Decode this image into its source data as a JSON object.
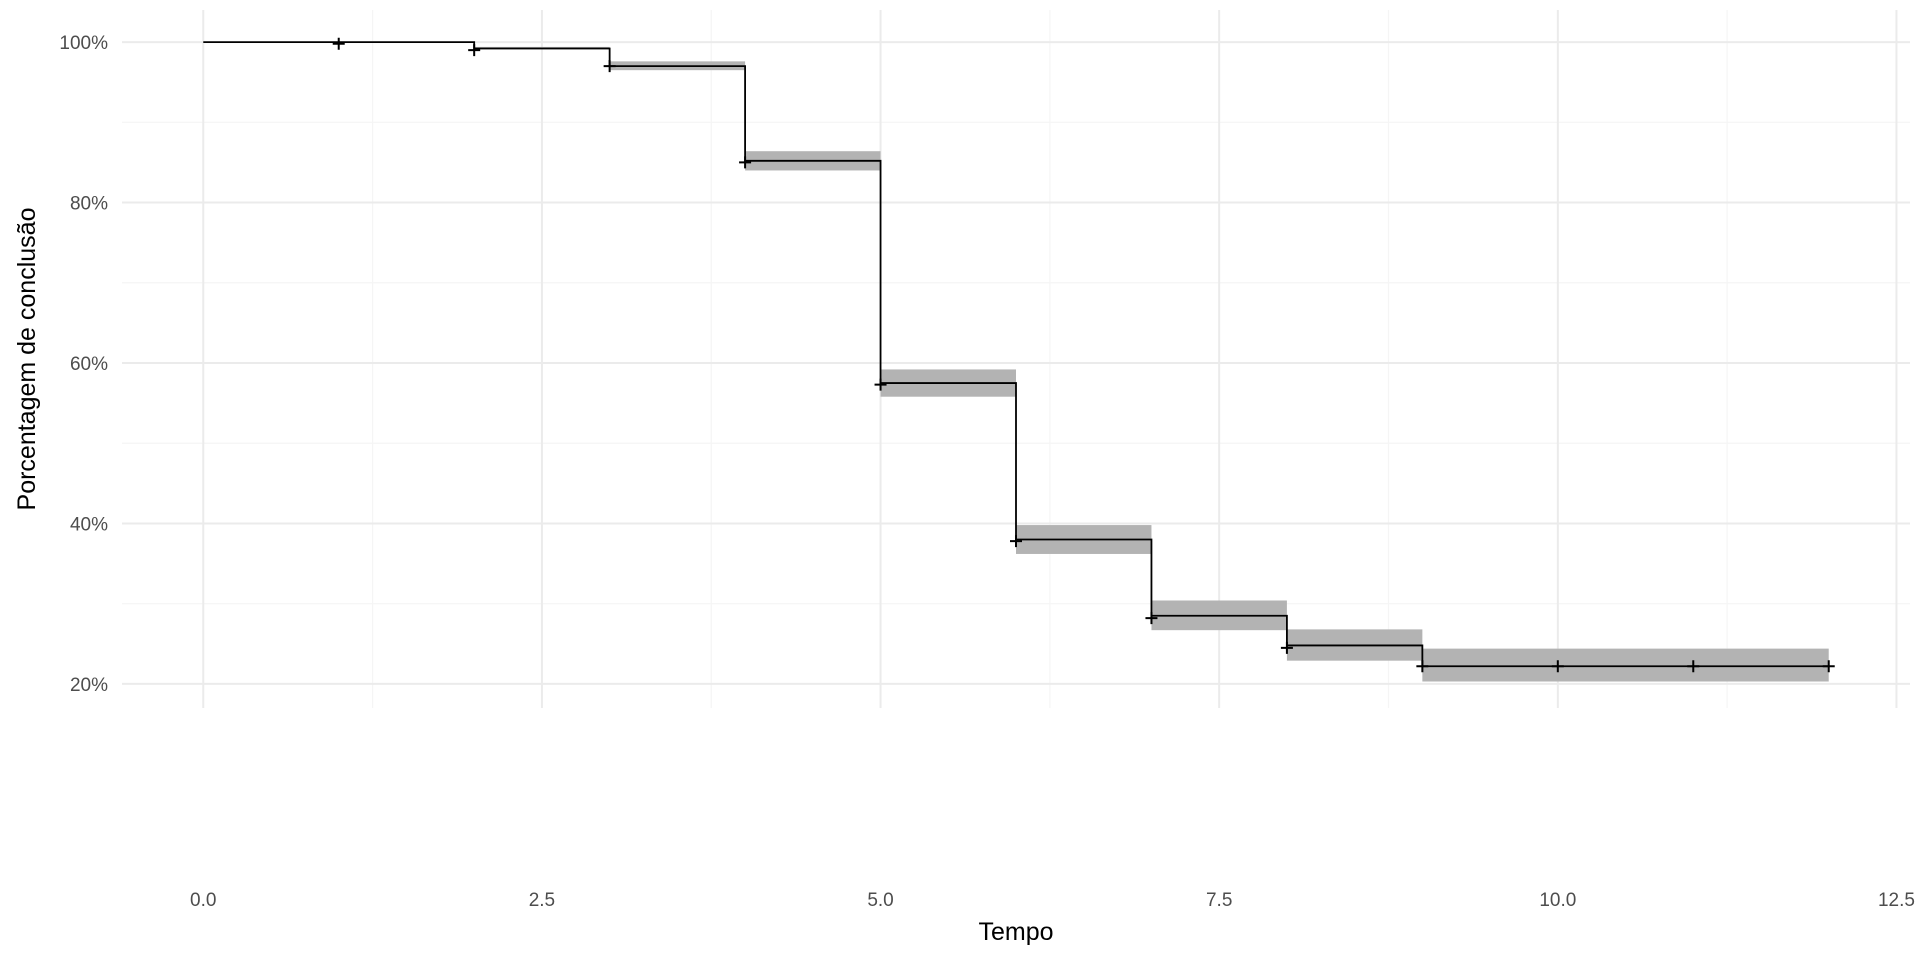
{
  "chart_data": {
    "type": "line",
    "subtype": "step",
    "title": "",
    "xlabel": "Tempo",
    "ylabel": "Porcentagem de conclusão",
    "xlim": [
      -0.6,
      12.6
    ],
    "ylim": [
      0.17,
      1.04
    ],
    "x_major_ticks": [
      0,
      2.5,
      5,
      7.5,
      10,
      12.5
    ],
    "x_tick_labels": [
      "0.0",
      "2.5",
      "5.0",
      "7.5",
      "10.0",
      "12.5"
    ],
    "x_minor_ticks": [
      1.25,
      3.75,
      6.25,
      8.75,
      11.25
    ],
    "y_major_ticks": [
      0.2,
      0.4,
      0.6,
      0.8,
      1.0
    ],
    "y_tick_labels": [
      "20%",
      "40%",
      "60%",
      "80%",
      "100%"
    ],
    "y_minor_ticks": [
      0.3,
      0.5,
      0.7,
      0.9
    ],
    "grid": true,
    "legend": "none",
    "colors": {
      "line": "#000000",
      "ribbon": "#b3b3b3",
      "grid_major": "#ebebeb",
      "grid_minor": "#f5f5f5"
    },
    "steps": [
      {
        "start": 0,
        "end": 2,
        "estimate": 1.0,
        "lower": 1.0,
        "upper": 1.0
      },
      {
        "start": 2,
        "end": 3,
        "estimate": 0.992,
        "lower": 0.991,
        "upper": 0.994
      },
      {
        "start": 3,
        "end": 4,
        "estimate": 0.97,
        "lower": 0.965,
        "upper": 0.976
      },
      {
        "start": 4,
        "end": 5,
        "estimate": 0.852,
        "lower": 0.84,
        "upper": 0.864
      },
      {
        "start": 5,
        "end": 6,
        "estimate": 0.575,
        "lower": 0.558,
        "upper": 0.592
      },
      {
        "start": 6,
        "end": 7,
        "estimate": 0.38,
        "lower": 0.362,
        "upper": 0.398
      },
      {
        "start": 7,
        "end": 8,
        "estimate": 0.285,
        "lower": 0.267,
        "upper": 0.304
      },
      {
        "start": 8,
        "end": 9,
        "estimate": 0.248,
        "lower": 0.229,
        "upper": 0.268
      },
      {
        "start": 9,
        "end": 12,
        "estimate": 0.222,
        "lower": 0.203,
        "upper": 0.244
      }
    ],
    "censor_marks": [
      {
        "x": 1,
        "y": 0.998
      },
      {
        "x": 2,
        "y": 0.99
      },
      {
        "x": 3,
        "y": 0.97
      },
      {
        "x": 4,
        "y": 0.85
      },
      {
        "x": 5,
        "y": 0.573
      },
      {
        "x": 6,
        "y": 0.378
      },
      {
        "x": 7,
        "y": 0.282
      },
      {
        "x": 8,
        "y": 0.245
      },
      {
        "x": 9,
        "y": 0.222
      },
      {
        "x": 10,
        "y": 0.222
      },
      {
        "x": 11,
        "y": 0.222
      },
      {
        "x": 12,
        "y": 0.222
      }
    ]
  }
}
